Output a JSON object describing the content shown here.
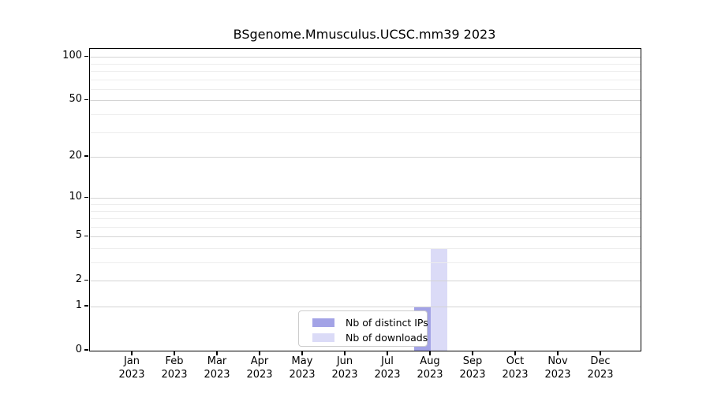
{
  "chart_data": {
    "type": "bar",
    "title": "BSgenome.Mmusculus.UCSC.mm39 2023",
    "categories": [
      "Jan",
      "Feb",
      "Mar",
      "Apr",
      "May",
      "Jun",
      "Jul",
      "Aug",
      "Sep",
      "Oct",
      "Nov",
      "Dec"
    ],
    "category_year": "2023",
    "series": [
      {
        "name": "Nb of distinct IPs",
        "color": "#a3a3e6",
        "values": [
          0,
          0,
          0,
          0,
          0,
          0,
          0,
          1,
          0,
          0,
          0,
          0
        ]
      },
      {
        "name": "Nb of downloads",
        "color": "#dbdbf7",
        "values": [
          0,
          0,
          0,
          0,
          0,
          0,
          0,
          4,
          0,
          0,
          0,
          0
        ]
      }
    ],
    "y_axis": {
      "scale": "log10(1+x)",
      "major_ticks": [
        0,
        1,
        2,
        5,
        10,
        20,
        50,
        100
      ],
      "minor_ticks": [
        3,
        4,
        6,
        7,
        8,
        9,
        30,
        40,
        60,
        70,
        80,
        90
      ],
      "range": [
        0,
        100
      ]
    },
    "x_axis": {
      "label_line2": "2023"
    },
    "legend": {
      "position": "inside-bottom-center",
      "entries": [
        "Nb of distinct IPs",
        "Nb of downloads"
      ]
    },
    "grid": "on",
    "colors": {
      "major_grid": "#d4d4d4",
      "minor_grid": "#ededed",
      "axis": "#000000",
      "background": "#ffffff",
      "distinct_ips_bar": "#a3a3e6",
      "downloads_bar": "#dbdbf7"
    }
  }
}
